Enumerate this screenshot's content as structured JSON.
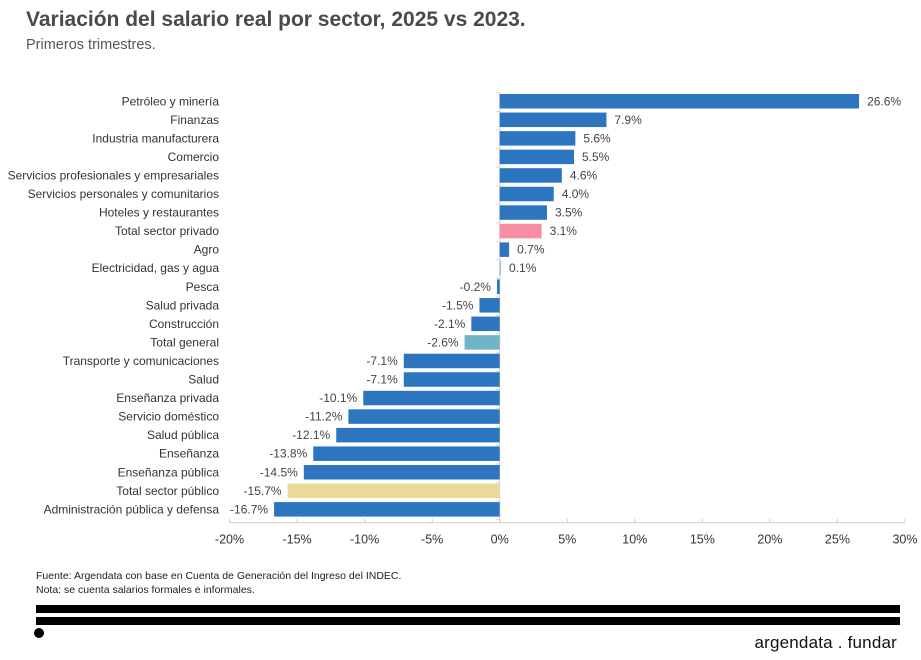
{
  "header": {
    "title": "Variación del salario real por sector, 2025 vs 2023.",
    "subtitle": "Primeros trimestres."
  },
  "chart_data": {
    "type": "bar",
    "orientation": "horizontal",
    "title": "Variación del salario real por sector, 2025 vs 2023.",
    "subtitle": "Primeros trimestres.",
    "xlabel": "",
    "ylabel": "",
    "xlim": [
      -20,
      30
    ],
    "x_ticks": [
      -20,
      -15,
      -10,
      -5,
      0,
      5,
      10,
      15,
      20,
      25,
      30
    ],
    "x_tick_labels": [
      "-20%",
      "-15%",
      "-10%",
      "-5%",
      "0%",
      "5%",
      "10%",
      "15%",
      "20%",
      "25%",
      "30%"
    ],
    "grid": false,
    "legend": "none",
    "categories": [
      "Petróleo y minería",
      "Finanzas",
      "Industria manufacturera",
      "Comercio",
      "Servicios profesionales y empresariales",
      "Servicios personales y comunitarios",
      "Hoteles y restaurantes",
      "Total sector privado",
      "Agro",
      "Electricidad, gas y agua",
      "Pesca",
      "Salud privada",
      "Construcción",
      "Total general",
      "Transporte y comunicaciones",
      "Salud",
      "Enseñanza privada",
      "Servicio doméstico",
      "Salud pública",
      "Enseñanza",
      "Enseñanza pública",
      "Total sector público",
      "Administración pública y defensa"
    ],
    "values": [
      26.6,
      7.9,
      5.6,
      5.5,
      4.6,
      4.0,
      3.5,
      3.1,
      0.7,
      0.1,
      -0.2,
      -1.5,
      -2.1,
      -2.6,
      -7.1,
      -7.1,
      -10.1,
      -11.2,
      -12.1,
      -13.8,
      -14.5,
      -15.7,
      -16.7
    ],
    "value_labels": [
      "26.6%",
      "7.9%",
      "5.6%",
      "5.5%",
      "4.6%",
      "4.0%",
      "3.5%",
      "3.1%",
      "0.7%",
      "0.1%",
      "-0.2%",
      "-1.5%",
      "-2.1%",
      "-2.6%",
      "-7.1%",
      "-7.1%",
      "-10.1%",
      "-11.2%",
      "-12.1%",
      "-13.8%",
      "-14.5%",
      "-15.7%",
      "-16.7%"
    ],
    "colors": {
      "default": "#2e75bf",
      "Total sector privado": "#f78ca5",
      "Total general": "#70b4c6",
      "Total sector público": "#ead99a",
      "Electricidad, gas y agua": "#9ec1e4"
    }
  },
  "footer": {
    "source": "Fuente: Argendata con base en Cuenta de Generación del Ingreso del INDEC.",
    "note": "Nota: se cuenta salarios formales e informales.",
    "brand": "argendata . fundar"
  }
}
